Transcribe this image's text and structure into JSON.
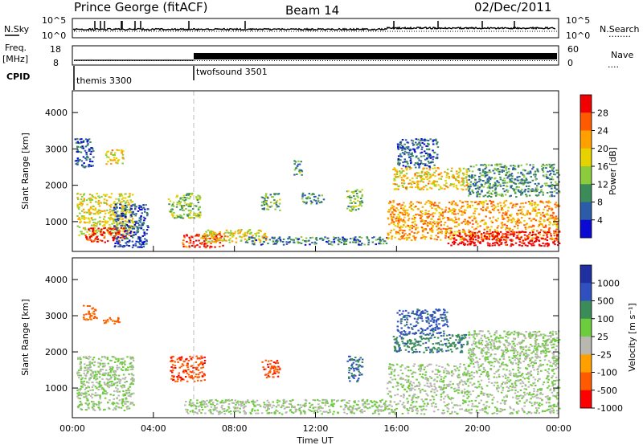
{
  "header": {
    "station": "Prince George (fitACF)",
    "beam": "Beam 14",
    "date": "02/Dec/2011"
  },
  "noise_panel": {
    "left_label": "N.Sky",
    "left_ticks": [
      "10^5",
      "10^0"
    ],
    "right_ticks": [
      "10^5",
      "10^0"
    ],
    "right_label": "N.Search",
    "right_label_line": "........"
  },
  "freq_panel": {
    "left_label_top": "Freq.",
    "left_label_unit": "[MHz]",
    "left_ticks": [
      "18",
      "8"
    ],
    "right_ticks": [
      "60",
      "0"
    ],
    "right_label": "Nave",
    "right_label_line": "....",
    "freq_mhz": 10.3,
    "nave_high": 60
  },
  "cpid": {
    "label": "CPID",
    "modes": [
      {
        "name": "themis 3300",
        "start_hour": 0
      },
      {
        "name": "twofsound 3501",
        "start_hour": 6
      }
    ]
  },
  "chart_data": [
    {
      "type": "heatmap",
      "name": "power",
      "ylabel": "Slant Range [km]",
      "yticks": [
        "4000",
        "3000",
        "2000",
        "1000"
      ],
      "ylim": [
        180,
        4600
      ],
      "xlim": [
        0,
        24
      ],
      "colorbar": {
        "title": "Power [dB]",
        "ticks": [
          "28",
          "24",
          "20",
          "16",
          "12",
          "8",
          "4"
        ],
        "colors": [
          "#f00000",
          "#ff5a00",
          "#ffa000",
          "#e6d200",
          "#8ccc3c",
          "#3c8c5a",
          "#2c5ca8",
          "#0a0ad2"
        ]
      },
      "patches": [
        {
          "t": [
            0.2,
            3.0
          ],
          "r": [
            600,
            1800
          ],
          "level": 0.55
        },
        {
          "t": [
            0.6,
            2.6
          ],
          "r": [
            450,
            850
          ],
          "level": 0.95
        },
        {
          "t": [
            0.1,
            1.0
          ],
          "r": [
            2500,
            3300
          ],
          "level": 0.2
        },
        {
          "t": [
            1.6,
            2.5
          ],
          "r": [
            2600,
            3000
          ],
          "level": 0.6
        },
        {
          "t": [
            2.0,
            3.7
          ],
          "r": [
            300,
            1500
          ],
          "level": 0.15
        },
        {
          "t": [
            4.7,
            6.3
          ],
          "r": [
            1100,
            1800
          ],
          "level": 0.45
        },
        {
          "t": [
            5.4,
            7.5
          ],
          "r": [
            300,
            700
          ],
          "level": 0.9
        },
        {
          "t": [
            6.3,
            9.6
          ],
          "r": [
            450,
            800
          ],
          "level": 0.55
        },
        {
          "t": [
            8.5,
            15.5
          ],
          "r": [
            380,
            600
          ],
          "level": 0.25
        },
        {
          "t": [
            9.3,
            10.2
          ],
          "r": [
            1300,
            1800
          ],
          "level": 0.35
        },
        {
          "t": [
            10.9,
            11.3
          ],
          "r": [
            2300,
            2700
          ],
          "level": 0.35
        },
        {
          "t": [
            11.3,
            12.4
          ],
          "r": [
            1500,
            1800
          ],
          "level": 0.3
        },
        {
          "t": [
            13.5,
            14.3
          ],
          "r": [
            1300,
            1900
          ],
          "level": 0.4
        },
        {
          "t": [
            15.5,
            24.0
          ],
          "r": [
            500,
            1600
          ],
          "level": 0.7
        },
        {
          "t": [
            18.5,
            24.0
          ],
          "r": [
            350,
            750
          ],
          "level": 1.0
        },
        {
          "t": [
            15.8,
            19.5
          ],
          "r": [
            1900,
            2500
          ],
          "level": 0.6
        },
        {
          "t": [
            16.0,
            18.0
          ],
          "r": [
            2500,
            3300
          ],
          "level": 0.2
        },
        {
          "t": [
            19.5,
            24.0
          ],
          "r": [
            1700,
            2600
          ],
          "level": 0.3
        }
      ]
    },
    {
      "type": "heatmap",
      "name": "velocity",
      "ylabel": "Slant Range [km]",
      "yticks": [
        "4000",
        "3000",
        "2000",
        "1000"
      ],
      "ylim": [
        180,
        4600
      ],
      "xlim": [
        0,
        24
      ],
      "xlabel": "Time UT",
      "xticks": [
        "00:00",
        "04:00",
        "08:00",
        "12:00",
        "16:00",
        "20:00",
        "00:00"
      ],
      "colorbar": {
        "title": "Velocity [m s⁻¹]",
        "ticks": [
          "1000",
          "500",
          "100",
          "25",
          "-25",
          "-100",
          "-500",
          "-1000"
        ],
        "colors": [
          "#2030a0",
          "#3050c0",
          "#3c8c5a",
          "#6ccc3c",
          "#b8b8b0",
          "#ffa000",
          "#ff5a00",
          "#ff0000"
        ]
      },
      "patches": [
        {
          "t": [
            0.2,
            3.0
          ],
          "r": [
            400,
            1900
          ],
          "level": 0.5
        },
        {
          "t": [
            0.5,
            1.2
          ],
          "r": [
            2900,
            3300
          ],
          "level": 0.2
        },
        {
          "t": [
            1.5,
            2.3
          ],
          "r": [
            2800,
            3000
          ],
          "level": 0.2
        },
        {
          "t": [
            4.8,
            6.5
          ],
          "r": [
            1200,
            1900
          ],
          "level": 0.15
        },
        {
          "t": [
            5.5,
            15.5
          ],
          "r": [
            300,
            700
          ],
          "level": 0.5
        },
        {
          "t": [
            9.3,
            10.2
          ],
          "r": [
            1300,
            1800
          ],
          "level": 0.15
        },
        {
          "t": [
            13.5,
            14.3
          ],
          "r": [
            1200,
            1900
          ],
          "level": 0.75
        },
        {
          "t": [
            15.5,
            24.0
          ],
          "r": [
            300,
            1700
          ],
          "level": 0.5
        },
        {
          "t": [
            15.8,
            19.5
          ],
          "r": [
            2000,
            2500
          ],
          "level": 0.7
        },
        {
          "t": [
            16.0,
            18.5
          ],
          "r": [
            2500,
            3200
          ],
          "level": 0.8
        },
        {
          "t": [
            19.5,
            24.0
          ],
          "r": [
            1700,
            2600
          ],
          "level": 0.5
        }
      ]
    }
  ]
}
